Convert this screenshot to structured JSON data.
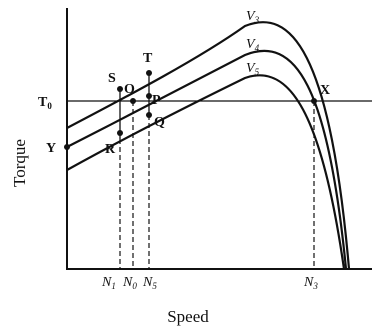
{
  "axes": {
    "x_label": "Speed",
    "y_label": "Torque"
  },
  "curves": {
    "v3": {
      "main": "V",
      "sub": "3"
    },
    "v4": {
      "main": "V",
      "sub": "4"
    },
    "v5": {
      "main": "V",
      "sub": "5"
    }
  },
  "points": {
    "T0": {
      "main": "T",
      "sub": "0"
    },
    "S": "S",
    "T": "T",
    "O": "O",
    "P": "P",
    "Q": "Q",
    "R": "R",
    "Y": "Y",
    "X": "X"
  },
  "speed_ticks": {
    "N1": {
      "main": "N",
      "sub": "1"
    },
    "N0": {
      "main": "N",
      "sub": "0"
    },
    "N5": {
      "main": "N",
      "sub": "5"
    },
    "N3": {
      "main": "N",
      "sub": "3"
    }
  }
}
